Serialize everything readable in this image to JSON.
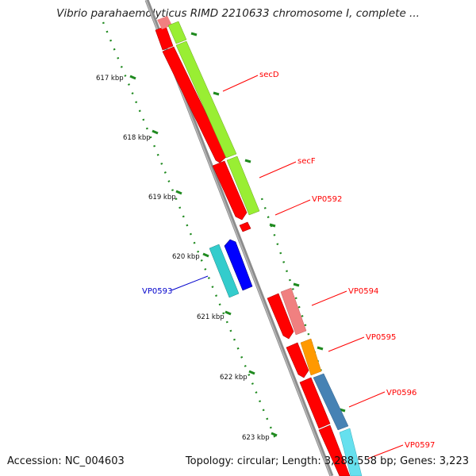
{
  "header": {
    "title": "Vibrio parahaemolyticus RIMD 2210633 chromosome I, complete ..."
  },
  "footer": {
    "accession": "Accession: NC_004603",
    "summary": "Topology: circular; Length: 3,288,558 bp; Genes: 3,223"
  },
  "ruler": {
    "ticks": [
      "617 kbp",
      "618 kbp",
      "619 kbp",
      "620 kbp",
      "621 kbp",
      "622 kbp",
      "623 kbp"
    ]
  },
  "genes": [
    {
      "name": "secD",
      "color": "#ff0000"
    },
    {
      "name": "secF",
      "color": "#ff0000"
    },
    {
      "name": "VP0592",
      "color": "#ff0000"
    },
    {
      "name": "VP0593",
      "color": "#0000cc"
    },
    {
      "name": "VP0594",
      "color": "#ff0000"
    },
    {
      "name": "VP0595",
      "color": "#ff0000"
    },
    {
      "name": "VP0596",
      "color": "#ff0000"
    },
    {
      "name": "VP0597",
      "color": "#ff0000"
    }
  ],
  "colors": {
    "backbone": "#8c8c8c",
    "cds_forward": "#ff0000",
    "cds_reverse": "#0000ff",
    "cog_green": "#99ee33",
    "cog_pink": "#f08080",
    "cog_orange": "#ff9900",
    "cog_steelblue": "#4682b4",
    "cog_cyan": "#33cccc",
    "ruler": "#2a8a2a"
  }
}
